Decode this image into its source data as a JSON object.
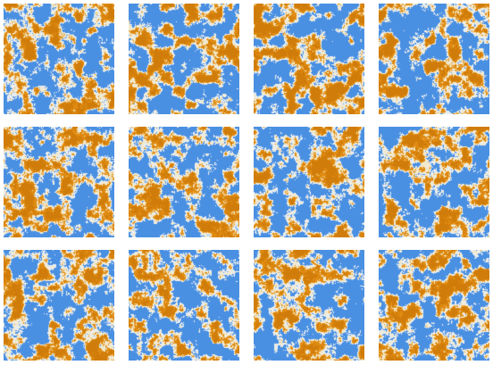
{
  "pattern_grid": {
    "rows": 3,
    "columns": 4,
    "palette": {
      "blue": "#4a90e2",
      "light": "#f3e8c6",
      "pale": "#e9eef4",
      "orange": "#e08c12",
      "dark_orange": "#d07c0a"
    },
    "tiles": [
      {
        "seed": 11
      },
      {
        "seed": 23
      },
      {
        "seed": 37
      },
      {
        "seed": 41
      },
      {
        "seed": 53
      },
      {
        "seed": 67
      },
      {
        "seed": 71
      },
      {
        "seed": 89
      },
      {
        "seed": 97
      },
      {
        "seed": 103
      },
      {
        "seed": 127
      },
      {
        "seed": 131
      }
    ]
  }
}
